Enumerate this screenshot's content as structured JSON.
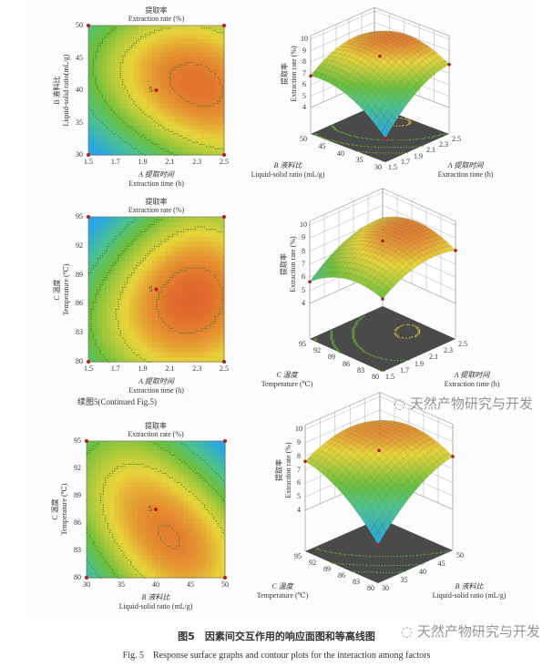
{
  "continued_caption": "续图5(Continued Fig.5)",
  "caption_cn": "图5　因素间交互作用的响应面图和等高线图",
  "caption_en": "Fig. 5　Response surface graphs and contour plots for the interaction among factors",
  "watermark": "天然产物研究与开发",
  "colors": {
    "low": "#2aa7e0",
    "mid": "#6cbf3c",
    "high_yellow": "#e8d43a",
    "high": "#e0602a",
    "floor": "#4a4a4a",
    "design_point": "#b01e1e"
  },
  "chart_data": [
    {
      "type": "contour",
      "title_cn": "提取率",
      "title_en": "Extraction rate (%)",
      "x": {
        "label_cn": "A 提取时间",
        "label_en": "Extraction time (h)",
        "range": [
          1.5,
          2.5
        ],
        "ticks": [
          "1.5",
          "1.7",
          "1.9",
          "2.1",
          "2.3",
          "2.5"
        ]
      },
      "y": {
        "label_cn": "B 液料比",
        "label_en": "Liquid-solid ratio(mL/g)",
        "range": [
          30,
          50
        ],
        "ticks": [
          "30",
          "35",
          "40",
          "45",
          "50"
        ]
      },
      "center_point": {
        "x": 2.0,
        "y": 40,
        "label": "5"
      }
    },
    {
      "type": "surface",
      "z": {
        "label_cn": "提取率",
        "label_en": "Extraction rate (%)",
        "range": [
          4,
          10
        ],
        "ticks": [
          "4",
          "5",
          "6",
          "7",
          "8",
          "9",
          "10"
        ]
      },
      "a": {
        "label_cn": "A 提取时间",
        "label_en": "Extraction time (h)",
        "ticks": [
          "1.5",
          "1.7",
          "1.9",
          "2.1",
          "2.3",
          "2.5"
        ]
      },
      "b": {
        "label_cn": "B 液料比",
        "label_en": "Liquid-solid ratio (mL/g)",
        "ticks": [
          "30",
          "35",
          "40",
          "45",
          "50"
        ]
      }
    },
    {
      "type": "contour",
      "title_cn": "提取率",
      "title_en": "Extraction rate (%)",
      "x": {
        "label_cn": "A 提取时间",
        "label_en": "Extraction time (h)",
        "range": [
          1.5,
          2.5
        ],
        "ticks": [
          "1.5",
          "1.7",
          "1.9",
          "2.1",
          "2.3",
          "2.5"
        ]
      },
      "y": {
        "label_cn": "C 温度",
        "label_en": "Temperature (℃)",
        "range": [
          80,
          95
        ],
        "ticks": [
          "80",
          "83",
          "86",
          "89",
          "92",
          "95"
        ]
      },
      "center_point": {
        "x": 2.0,
        "y": 87.5,
        "label": "5"
      }
    },
    {
      "type": "surface",
      "z": {
        "label_cn": "提取率",
        "label_en": "Extraction rate (%)",
        "range": [
          4,
          10
        ],
        "ticks": [
          "4",
          "5",
          "6",
          "7",
          "8",
          "9",
          "10"
        ]
      },
      "a": {
        "label_cn": "A 提取时间",
        "label_en": "Extraction time (h)",
        "ticks": [
          "1.5",
          "1.7",
          "1.9",
          "2.1",
          "2.3",
          "2.5"
        ]
      },
      "b": {
        "label_cn": "C 温度",
        "label_en": "Temperature (℃)",
        "ticks": [
          "80",
          "83",
          "86",
          "89",
          "92",
          "95"
        ]
      }
    },
    {
      "type": "contour",
      "title_cn": "提取率",
      "title_en": "Extraction rate (%)",
      "x": {
        "label_cn": "B 液料比",
        "label_en": "Liquid-solid ratio (mL/g)",
        "range": [
          30,
          50
        ],
        "ticks": [
          "30",
          "35",
          "40",
          "45",
          "50"
        ]
      },
      "y": {
        "label_cn": "C 温度",
        "label_en": "Temperature (℃)",
        "range": [
          80,
          95
        ],
        "ticks": [
          "80",
          "83",
          "86",
          "89",
          "92",
          "95"
        ]
      },
      "center_point": {
        "x": 40,
        "y": 87.5,
        "label": "5"
      }
    },
    {
      "type": "surface",
      "z": {
        "label_cn": "提取率",
        "label_en": "Extraction rate (%)",
        "range": [
          4,
          10
        ],
        "ticks": [
          "4",
          "5",
          "6",
          "7",
          "8",
          "9",
          "10"
        ]
      },
      "a": {
        "label_cn": "B 液料比",
        "label_en": "Liquid-solid ratio (mL/g)",
        "ticks": [
          "30",
          "35",
          "40",
          "45",
          "50"
        ]
      },
      "b": {
        "label_cn": "C 温度",
        "label_en": "Temperature (℃)",
        "ticks": [
          "80",
          "83",
          "86",
          "89",
          "92",
          "95"
        ]
      }
    }
  ]
}
